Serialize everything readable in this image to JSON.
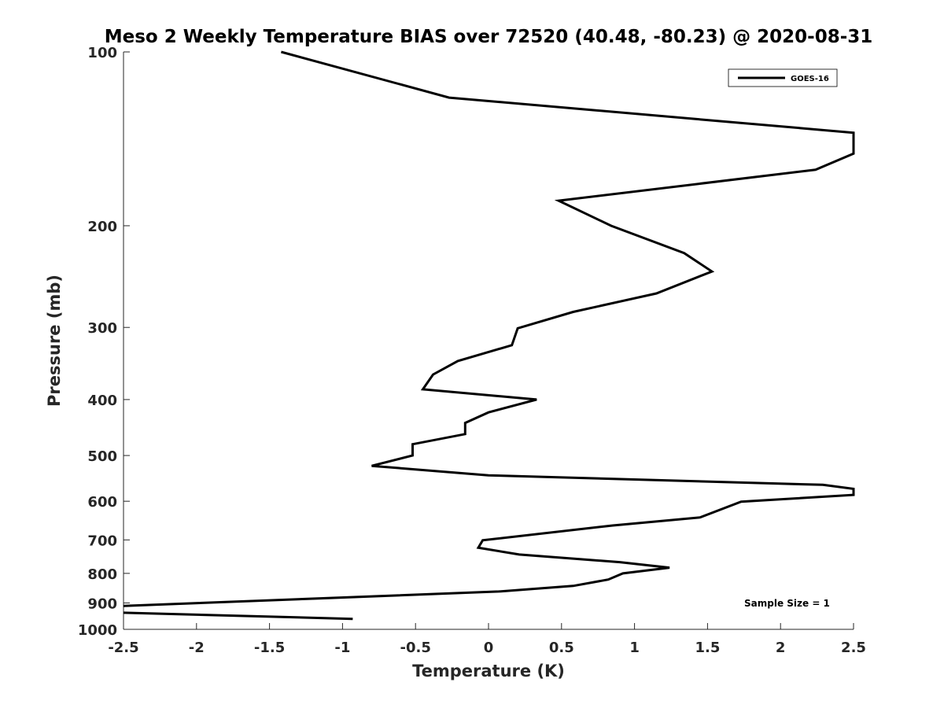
{
  "chart_data": {
    "type": "line",
    "title": "Meso 2 Weekly Temperature BIAS over 72520 (40.48, -80.23) @ 2020-08-31",
    "xlabel": "Temperature (K)",
    "ylabel": "Pressure (mb)",
    "xlim": [
      -2.5,
      2.5
    ],
    "ylim": [
      100,
      1000
    ],
    "y_scale": "log",
    "y_reversed": true,
    "grid": false,
    "x_ticks": [
      -2.5,
      -2,
      -1.5,
      -1,
      -0.5,
      0,
      0.5,
      1,
      1.5,
      2,
      2.5
    ],
    "x_tick_labels": [
      "-2.5",
      "-2",
      "-1.5",
      "-1",
      "-0.5",
      "0",
      "0.5",
      "1",
      "1.5",
      "2",
      "2.5"
    ],
    "y_ticks": [
      100,
      200,
      300,
      400,
      500,
      600,
      700,
      800,
      900,
      1000
    ],
    "y_tick_labels": [
      "100",
      "200",
      "300",
      "400",
      "500",
      "600",
      "700",
      "800",
      "900",
      "1000"
    ],
    "legend": {
      "location": "top-right",
      "entries": [
        "GOES-16"
      ]
    },
    "annotation": "Sample Size = 1",
    "color": "#000000",
    "series": [
      {
        "name": "GOES-16",
        "points": [
          [
            -1.42,
            100
          ],
          [
            -0.27,
            120
          ],
          [
            2.5,
            138
          ],
          [
            2.5,
            150
          ],
          [
            2.24,
            160
          ],
          [
            0.48,
            181
          ],
          [
            0.84,
            200
          ],
          [
            1.34,
            223
          ],
          [
            1.53,
            240
          ],
          [
            1.15,
            262
          ],
          [
            0.58,
            282
          ],
          [
            0.2,
            301
          ],
          [
            0.16,
            322
          ],
          [
            -0.21,
            343
          ],
          [
            -0.38,
            362
          ],
          [
            -0.45,
            384
          ],
          [
            0.33,
            400
          ],
          [
            0.0,
            421
          ],
          [
            -0.16,
            439
          ],
          [
            -0.16,
            459
          ],
          [
            -0.52,
            478
          ],
          [
            -0.52,
            500
          ],
          [
            -0.8,
            521
          ],
          [
            0.0,
            541
          ],
          [
            2.29,
            562
          ],
          [
            2.5,
            571
          ],
          [
            2.5,
            585
          ],
          [
            1.73,
            601
          ],
          [
            1.45,
            640
          ],
          [
            0.85,
            661
          ],
          [
            -0.04,
            701
          ],
          [
            -0.07,
            722
          ],
          [
            0.21,
            742
          ],
          [
            0.9,
            765
          ],
          [
            1.24,
            782
          ],
          [
            0.92,
            800
          ],
          [
            0.82,
            820
          ],
          [
            0.58,
            841
          ],
          [
            0.07,
            860
          ],
          [
            -2.5,
            911
          ]
        ]
      },
      {
        "name": "GOES-16",
        "points": [
          [
            -2.5,
            936
          ],
          [
            -0.93,
            959
          ]
        ]
      }
    ]
  }
}
